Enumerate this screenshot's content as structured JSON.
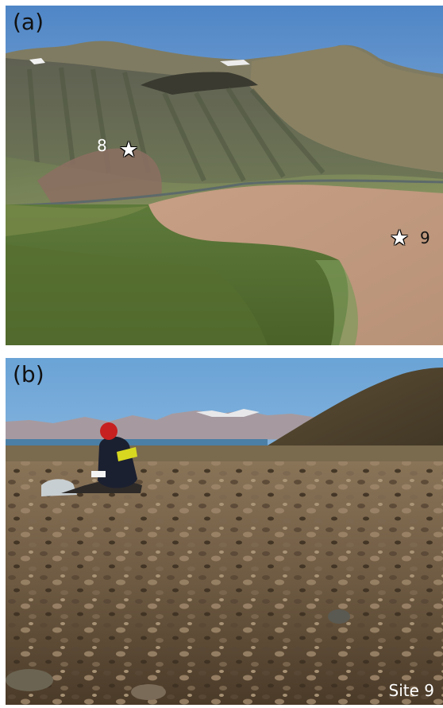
{
  "panel_a": {
    "label": "(a)",
    "markers": [
      {
        "number": "8",
        "symbol": "star-icon"
      },
      {
        "number": "9",
        "symbol": "star-icon"
      }
    ]
  },
  "panel_b": {
    "label": "(b)",
    "caption": "Site 9"
  }
}
